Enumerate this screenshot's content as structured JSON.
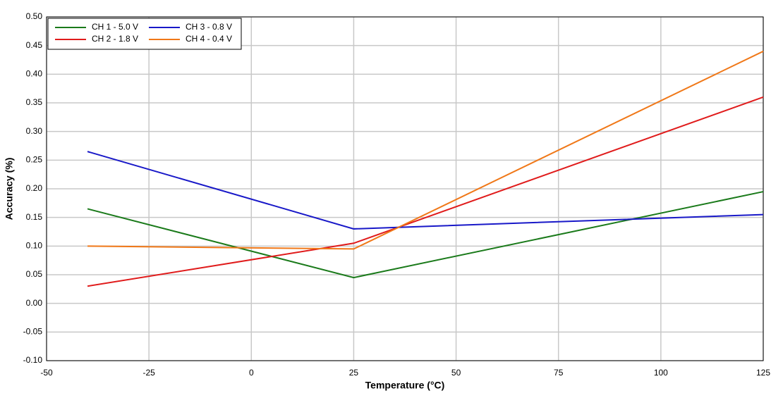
{
  "chart_data": {
    "type": "line",
    "x_label": "Temperature (°C)",
    "y_label": "Accuracy (%)",
    "x": [
      -40,
      25,
      125
    ],
    "series": [
      {
        "name": "CH 1 - 5.0 V",
        "color": "#1a7a1a",
        "values": [
          0.165,
          0.045,
          0.195
        ]
      },
      {
        "name": "CH 2 - 1.8 V",
        "color": "#e01b1b",
        "values": [
          0.03,
          0.105,
          0.36
        ]
      },
      {
        "name": "CH 3 - 0.8 V",
        "color": "#1818c8",
        "values": [
          0.265,
          0.13,
          0.155
        ]
      },
      {
        "name": "CH 4 - 0.4 V",
        "color": "#f07818",
        "values": [
          0.1,
          0.095,
          0.44
        ]
      }
    ],
    "xlim": [
      -50,
      125
    ],
    "xticks": [
      -50,
      -25,
      0,
      25,
      50,
      75,
      100,
      125
    ],
    "ylim": [
      -0.1,
      0.5
    ],
    "yticks": [
      {
        "value": -0.1,
        "label": "-0.10"
      },
      -0.05,
      {
        "value": 0,
        "label": "0.00"
      },
      0.05,
      {
        "value": 0.1,
        "label": "0.10"
      },
      0.15,
      {
        "value": 0.2,
        "label": "0.20"
      },
      0.25,
      {
        "value": 0.3,
        "label": "0.30"
      },
      0.35,
      {
        "value": 0.4,
        "label": "0.40"
      },
      0.45,
      {
        "value": 0.5,
        "label": "0.50"
      }
    ],
    "grid": true,
    "legend": "top-left"
  }
}
